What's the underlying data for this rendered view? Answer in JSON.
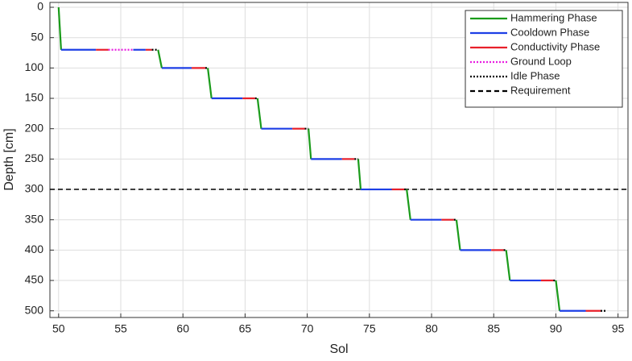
{
  "chart_data": {
    "type": "line",
    "xlabel": "Sol",
    "ylabel": "Depth [cm]",
    "xlim": [
      49.3,
      95.8
    ],
    "xticks": [
      50,
      55,
      60,
      65,
      70,
      75,
      80,
      85,
      90,
      95
    ],
    "ylim": [
      -8,
      511
    ],
    "yticks": [
      0,
      50,
      100,
      150,
      200,
      250,
      300,
      350,
      400,
      450,
      500
    ],
    "y_inverted": true,
    "grid": true,
    "legend": "upper right",
    "series": [
      {
        "name": "Hammering Phase",
        "color": "#1a9b1a",
        "dash": "solid",
        "x": [
          50,
          50.2,
          null,
          58,
          58.3,
          null,
          62,
          62.3,
          null,
          66,
          66.3,
          null,
          70.1,
          70.3,
          null,
          74.1,
          74.3,
          null,
          78,
          78.3,
          null,
          82,
          82.3,
          null,
          86,
          86.3,
          null,
          90,
          90.3
        ],
        "values": [
          0,
          70,
          null,
          70,
          100,
          null,
          100,
          150,
          null,
          150,
          200,
          null,
          200,
          250,
          null,
          250,
          300,
          null,
          300,
          350,
          null,
          350,
          400,
          null,
          400,
          450,
          null,
          450,
          500
        ]
      },
      {
        "name": "Cooldown Phase",
        "color": "#1d3fe6",
        "dash": "solid",
        "x": [
          50.2,
          53,
          null,
          56,
          57,
          null,
          58.3,
          60.7,
          null,
          62.3,
          64.8,
          null,
          66.3,
          68.8,
          null,
          70.3,
          72.8,
          null,
          74.3,
          76.8,
          null,
          78.3,
          80.8,
          null,
          82.3,
          84.8,
          null,
          86.3,
          88.8,
          null,
          90.3,
          92.4
        ],
        "values": [
          70,
          70,
          null,
          70,
          70,
          null,
          100,
          100,
          null,
          150,
          150,
          null,
          200,
          200,
          null,
          250,
          250,
          null,
          300,
          300,
          null,
          350,
          350,
          null,
          400,
          400,
          null,
          450,
          450,
          null,
          500,
          500
        ]
      },
      {
        "name": "Conductivity Phase",
        "color": "#e8202a",
        "dash": "solid",
        "x": [
          53,
          54,
          null,
          57,
          57.5,
          null,
          60.7,
          61.8,
          null,
          64.8,
          65.8,
          null,
          68.8,
          69.8,
          null,
          72.8,
          73.8,
          null,
          76.8,
          77.8,
          null,
          80.8,
          81.8,
          null,
          84.8,
          85.8,
          null,
          88.8,
          89.8,
          null,
          92.4,
          93.6
        ],
        "values": [
          70,
          70,
          null,
          70,
          70,
          null,
          100,
          100,
          null,
          150,
          150,
          null,
          200,
          200,
          null,
          250,
          250,
          null,
          300,
          300,
          null,
          350,
          350,
          null,
          400,
          400,
          null,
          450,
          450,
          null,
          500,
          500
        ]
      },
      {
        "name": "Ground Loop",
        "color": "#e81ee0",
        "dash": "dotted",
        "x": [
          54,
          56
        ],
        "values": [
          70,
          70
        ]
      },
      {
        "name": "Idle Phase",
        "color": "#000000",
        "dash": "dotted",
        "x": [
          57.5,
          58,
          null,
          61.8,
          62,
          null,
          65.8,
          66,
          null,
          69.8,
          70.1,
          null,
          73.8,
          74.1,
          null,
          77.8,
          78,
          null,
          81.8,
          82,
          null,
          85.8,
          86,
          null,
          89.8,
          90,
          null,
          93.6,
          94
        ],
        "values": [
          70,
          70,
          null,
          100,
          100,
          null,
          150,
          150,
          null,
          200,
          200,
          null,
          250,
          250,
          null,
          300,
          300,
          null,
          350,
          350,
          null,
          400,
          400,
          null,
          450,
          450,
          null,
          500,
          500
        ]
      }
    ],
    "reference_line": {
      "name": "Requirement",
      "value": 300,
      "color": "#000000",
      "dash": "dashed"
    }
  }
}
